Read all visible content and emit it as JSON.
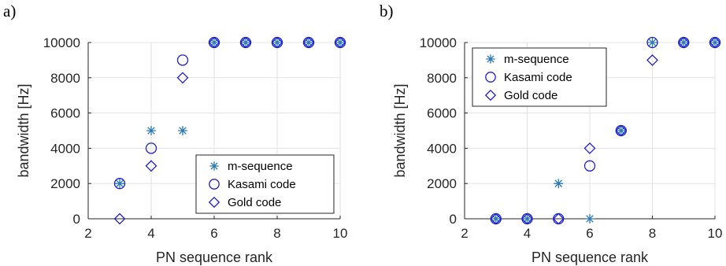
{
  "chart_data": [
    {
      "type": "scatter",
      "panel_label": "a)",
      "xlabel": "PN sequence rank",
      "ylabel": "bandwidth [Hz]",
      "xlim": [
        2,
        10
      ],
      "ylim": [
        0,
        10000
      ],
      "xticks": [
        "2",
        "4",
        "6",
        "8",
        "10"
      ],
      "yticks": [
        "0",
        "2000",
        "4000",
        "6000",
        "8000",
        "10000"
      ],
      "grid": true,
      "legend_position": "bottom-right",
      "series": [
        {
          "name": "m-sequence",
          "marker": "asterisk",
          "color": "#2a7ab5",
          "x": [
            3,
            4,
            5,
            6,
            7,
            8,
            9,
            10
          ],
          "y": [
            2000,
            5000,
            5000,
            10000,
            10000,
            10000,
            10000,
            10000
          ]
        },
        {
          "name": "Kasami code",
          "marker": "circle",
          "color": "#1f1fd6",
          "x": [
            3,
            4,
            5,
            6,
            7,
            8,
            9,
            10
          ],
          "y": [
            2000,
            4000,
            9000,
            10000,
            10000,
            10000,
            10000,
            10000
          ]
        },
        {
          "name": "Gold code",
          "marker": "diamond",
          "color": "#1f1fd6",
          "x": [
            3,
            4,
            5,
            6,
            7,
            8,
            9,
            10
          ],
          "y": [
            0,
            3000,
            8000,
            10000,
            10000,
            10000,
            10000,
            10000
          ]
        }
      ]
    },
    {
      "type": "scatter",
      "panel_label": "b)",
      "xlabel": "PN sequence rank",
      "ylabel": "bandwidth [Hz]",
      "xlim": [
        2,
        10
      ],
      "ylim": [
        0,
        10000
      ],
      "xticks": [
        "2",
        "4",
        "6",
        "8",
        "10"
      ],
      "yticks": [
        "0",
        "2000",
        "4000",
        "6000",
        "8000",
        "10000"
      ],
      "grid": true,
      "legend_position": "top-left",
      "series": [
        {
          "name": "m-sequence",
          "marker": "asterisk",
          "color": "#2a7ab5",
          "x": [
            3,
            4,
            5,
            6,
            7,
            8,
            9,
            10
          ],
          "y": [
            0,
            0,
            2000,
            0,
            5000,
            10000,
            10000,
            10000
          ]
        },
        {
          "name": "Kasami code",
          "marker": "circle",
          "color": "#1f1fd6",
          "x": [
            3,
            4,
            5,
            6,
            7,
            8,
            9,
            10
          ],
          "y": [
            0,
            0,
            0,
            3000,
            5000,
            10000,
            10000,
            10000
          ]
        },
        {
          "name": "Gold code",
          "marker": "diamond",
          "color": "#1f1fd6",
          "x": [
            3,
            4,
            5,
            6,
            7,
            8,
            9,
            10
          ],
          "y": [
            0,
            0,
            0,
            4000,
            5000,
            9000,
            10000,
            10000
          ]
        }
      ]
    }
  ]
}
